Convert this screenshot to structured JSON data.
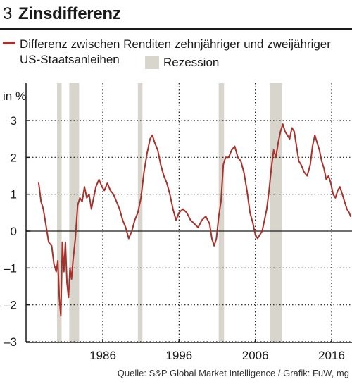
{
  "figure": {
    "number": "3",
    "title": "Zinsdifferenz",
    "source": "Quelle: S&P Global Market Intelligence / Grafik: FuW, mg"
  },
  "legend": {
    "line_label": "Differenz zwischen Renditen zehnjähriger und zweijähriger US-Staatsanleihen",
    "recession_label": "Rezession"
  },
  "colors": {
    "line": "#a8312c",
    "recession": "#d7d5cc",
    "axis": "#1a1a1a",
    "grid": "#1a1a1a"
  },
  "chart_data": {
    "type": "line",
    "unit": "in %",
    "xlim": [
      1977.5,
      2018.6
    ],
    "ylim": [
      -3,
      3.2
    ],
    "yticks": [
      3,
      2,
      1,
      0,
      -1,
      -2,
      -3
    ],
    "ytick_labels": [
      "3",
      "2",
      "1",
      "0",
      "–1",
      "–2",
      "–3"
    ],
    "xticks": [
      1986,
      1996,
      2006,
      2016
    ],
    "xtick_labels": [
      "1986",
      "1996",
      "2006",
      "2016"
    ],
    "grid": "dotted",
    "legend_position": "top",
    "recessions": [
      [
        1980.0,
        1980.6
      ],
      [
        1981.6,
        1982.9
      ],
      [
        1990.6,
        1991.2
      ],
      [
        2001.2,
        2001.9
      ],
      [
        2007.9,
        2009.5
      ]
    ],
    "series": [
      {
        "x": [
          1977.6,
          1977.9,
          1978.2,
          1978.6,
          1978.9,
          1979.3,
          1979.6,
          1979.9,
          1980.1,
          1980.3,
          1980.5,
          1980.7,
          1980.9,
          1981.1,
          1981.3,
          1981.5,
          1981.7,
          1981.9,
          1982.1,
          1982.4,
          1982.7,
          1983.0,
          1983.3,
          1983.6,
          1983.9,
          1984.2,
          1984.5,
          1984.8,
          1985.1,
          1985.5,
          1985.9,
          1986.2,
          1986.6,
          1987.0,
          1987.4,
          1987.8,
          1988.2,
          1988.6,
          1989.0,
          1989.4,
          1989.8,
          1990.2,
          1990.6,
          1991.0,
          1991.4,
          1991.8,
          1992.2,
          1992.5,
          1992.8,
          1993.2,
          1993.6,
          1994.0,
          1994.4,
          1994.8,
          1995.2,
          1995.6,
          1996.0,
          1996.5,
          1997.0,
          1997.5,
          1998.0,
          1998.5,
          1999.0,
          1999.5,
          2000.0,
          2000.3,
          2000.6,
          2000.9,
          2001.2,
          2001.5,
          2001.8,
          2002.1,
          2002.5,
          2002.9,
          2003.3,
          2003.7,
          2004.1,
          2004.5,
          2004.9,
          2005.3,
          2005.7,
          2006.0,
          2006.3,
          2006.6,
          2006.9,
          2007.2,
          2007.5,
          2007.8,
          2008.1,
          2008.4,
          2008.7,
          2009.0,
          2009.3,
          2009.6,
          2009.9,
          2010.2,
          2010.5,
          2010.8,
          2011.1,
          2011.4,
          2011.7,
          2012.0,
          2012.4,
          2012.8,
          2013.2,
          2013.5,
          2013.8,
          2014.1,
          2014.4,
          2014.7,
          2015.0,
          2015.3,
          2015.6,
          2015.9,
          2016.2,
          2016.5,
          2016.8,
          2017.1,
          2017.4,
          2017.7,
          2018.0,
          2018.3,
          2018.5
        ],
        "y": [
          1.3,
          0.8,
          0.6,
          0.1,
          -0.3,
          -0.4,
          -0.9,
          -1.1,
          -0.8,
          -1.8,
          -2.3,
          -0.3,
          -1.1,
          -0.3,
          -1.4,
          -1.8,
          -1.0,
          -1.3,
          -0.8,
          -0.2,
          0.7,
          0.9,
          0.8,
          1.2,
          0.9,
          1.0,
          0.6,
          0.9,
          1.2,
          1.4,
          1.2,
          1.1,
          1.3,
          1.1,
          1.0,
          0.8,
          0.6,
          0.3,
          0.1,
          -0.2,
          0.0,
          0.3,
          0.5,
          0.9,
          1.6,
          2.1,
          2.5,
          2.6,
          2.4,
          2.2,
          1.8,
          1.5,
          1.3,
          1.0,
          0.6,
          0.3,
          0.5,
          0.6,
          0.5,
          0.3,
          0.2,
          0.1,
          0.3,
          0.4,
          0.2,
          -0.2,
          -0.4,
          -0.2,
          0.4,
          0.8,
          1.8,
          2.0,
          2.0,
          2.2,
          2.3,
          2.0,
          1.9,
          1.6,
          1.1,
          0.5,
          0.2,
          -0.1,
          -0.2,
          -0.1,
          0.0,
          0.3,
          0.6,
          1.1,
          1.7,
          2.2,
          2.0,
          2.4,
          2.7,
          2.9,
          2.7,
          2.6,
          2.5,
          2.8,
          2.7,
          2.3,
          1.9,
          1.8,
          1.6,
          1.5,
          1.8,
          2.3,
          2.6,
          2.4,
          2.2,
          1.9,
          1.7,
          1.4,
          1.5,
          1.3,
          1.0,
          0.9,
          1.1,
          1.2,
          1.0,
          0.8,
          0.6,
          0.5,
          0.4
        ]
      }
    ]
  }
}
